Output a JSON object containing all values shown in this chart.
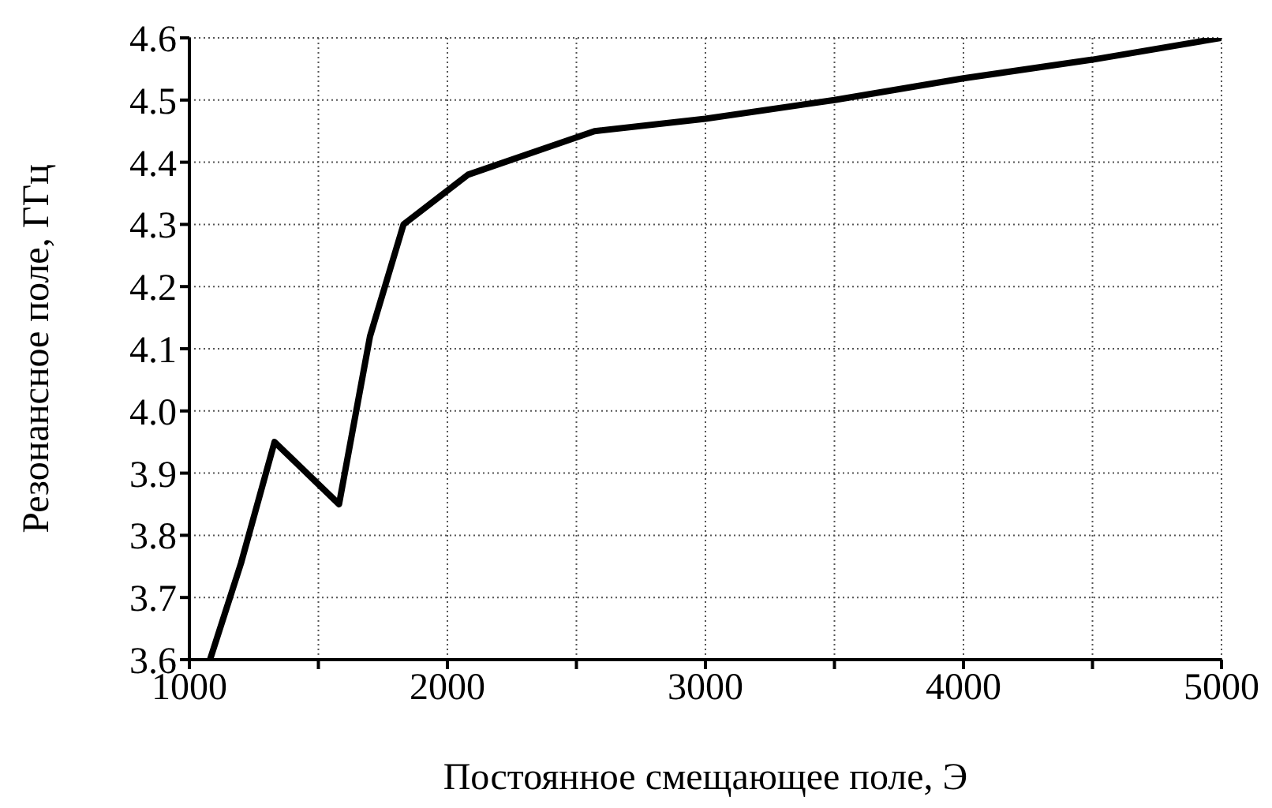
{
  "chart_data": {
    "type": "line",
    "xlabel": "Постоянное смещающее поле, Э",
    "ylabel": "Резонансное поле, ГГц",
    "x": [
      1080,
      1200,
      1330,
      1580,
      1700,
      1830,
      2080,
      2570,
      3000,
      3500,
      4000,
      4500,
      5000
    ],
    "series": [
      {
        "color": "#000000",
        "values": [
          3.6,
          3.755,
          3.95,
          3.85,
          4.12,
          4.3,
          4.38,
          4.45,
          4.47,
          4.5,
          4.535,
          4.565,
          4.6
        ]
      }
    ],
    "xlim": [
      1000,
      5000
    ],
    "xticks": [
      1000,
      {
        "value": 1500,
        "label": null
      },
      2000,
      {
        "value": 2500,
        "label": null
      },
      3000,
      {
        "value": 3500,
        "label": null
      },
      4000,
      {
        "value": 4500,
        "label": null
      },
      5000
    ],
    "ylim": [
      3.6,
      4.6
    ],
    "yticks": [
      3.6,
      3.7,
      3.8,
      3.9,
      {
        "value": 4,
        "label": "4.0"
      },
      4.1,
      4.2,
      4.3,
      4.4,
      4.5,
      4.6
    ],
    "grid": true,
    "marker": "none",
    "line_style": "solid",
    "legend": false
  }
}
